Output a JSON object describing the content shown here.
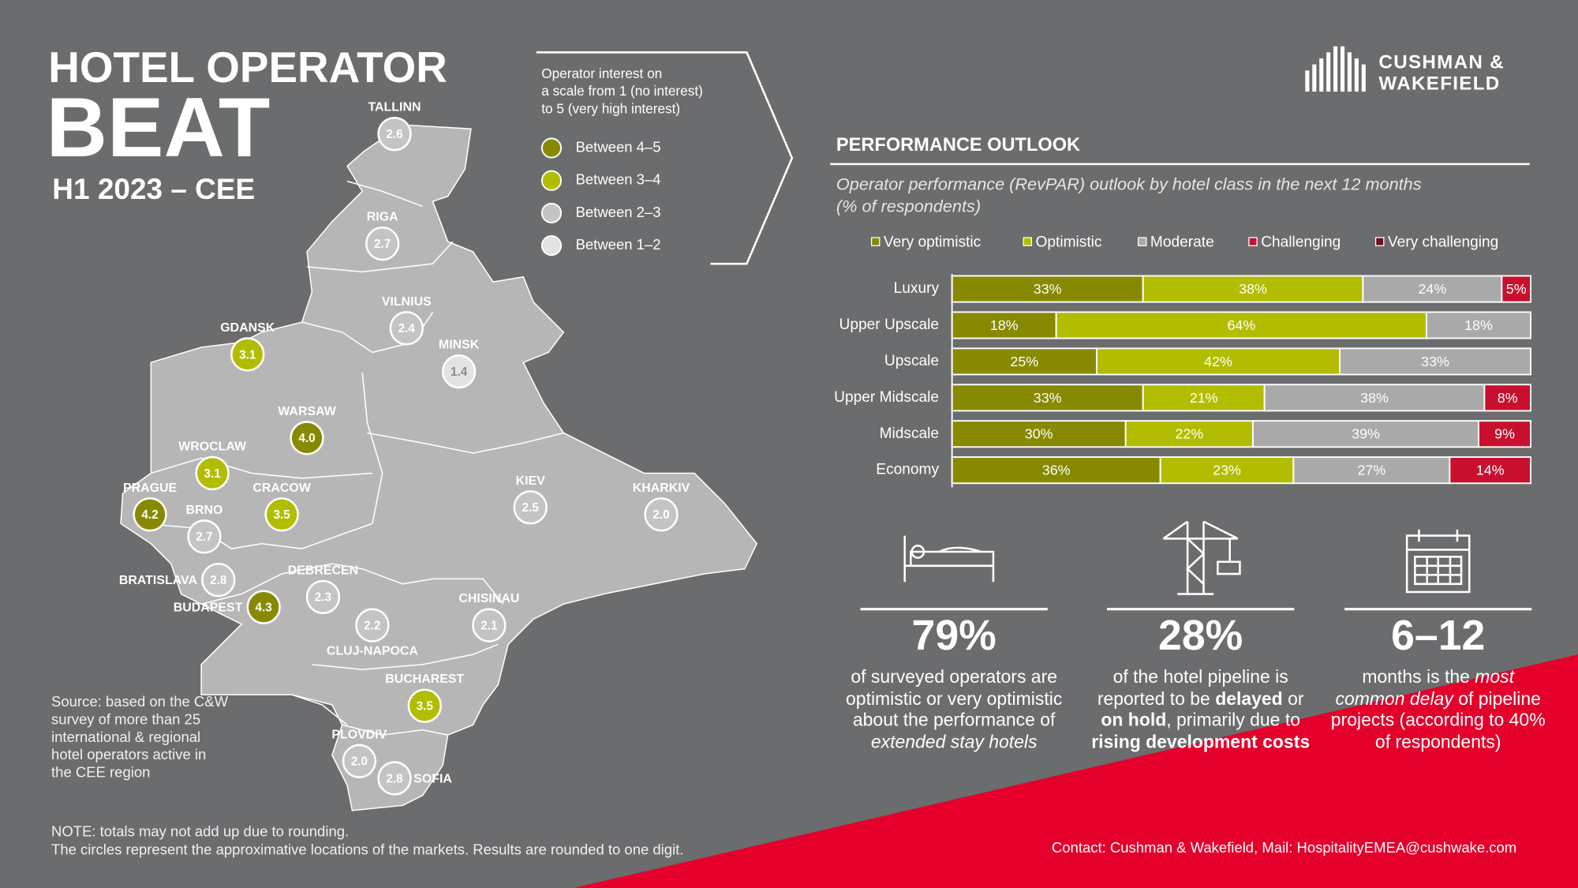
{
  "header": {
    "title": "HOTEL OPERATOR",
    "title_large": "BEAT",
    "subtitle": "H1 2023 – CEE"
  },
  "logo": {
    "line1": "CUSHMAN &",
    "line2": "WAKEFIELD"
  },
  "map_legend": {
    "lines": [
      "Operator interest on",
      "a scale from 1 (no interest)",
      "to 5 (very high interest)"
    ],
    "items": [
      {
        "label": "Between 4–5",
        "color": "#878a00"
      },
      {
        "label": "Between 3–4",
        "color": "#b2bd00"
      },
      {
        "label": "Between 2–3",
        "color": "#c4c4c4"
      },
      {
        "label": "Between 1–2",
        "color": "#e3e3e3"
      }
    ]
  },
  "map": {
    "markets": [
      {
        "name": "TALLINN",
        "value": "2.6",
        "color": "#c4c4c4"
      },
      {
        "name": "RIGA",
        "value": "2.7",
        "color": "#c4c4c4"
      },
      {
        "name": "VILNIUS",
        "value": "2.4",
        "color": "#c4c4c4"
      },
      {
        "name": "MINSK",
        "value": "1.4",
        "color": "#e3e3e3"
      },
      {
        "name": "GDANSK",
        "value": "3.1",
        "color": "#b2bd00"
      },
      {
        "name": "WARSAW",
        "value": "4.0",
        "color": "#878a00"
      },
      {
        "name": "WROCLAW",
        "value": "3.1",
        "color": "#b2bd00"
      },
      {
        "name": "CRACOW",
        "value": "3.5",
        "color": "#b2bd00"
      },
      {
        "name": "PRAGUE",
        "value": "4.2",
        "color": "#878a00"
      },
      {
        "name": "BRNO",
        "value": "2.7",
        "color": "#c4c4c4"
      },
      {
        "name": "KIEV",
        "value": "2.5",
        "color": "#c4c4c4"
      },
      {
        "name": "KHARKIV",
        "value": "2.0",
        "color": "#c4c4c4"
      },
      {
        "name": "BRATISLAVA",
        "value": "2.8",
        "color": "#c4c4c4"
      },
      {
        "name": "DEBRECEN",
        "value": "2.3",
        "color": "#c4c4c4"
      },
      {
        "name": "BUDAPEST",
        "value": "4.3",
        "color": "#878a00"
      },
      {
        "name": "CLUJ-NAPOCA",
        "value": "2.2",
        "color": "#c4c4c4"
      },
      {
        "name": "CHISINAU",
        "value": "2.1",
        "color": "#c4c4c4"
      },
      {
        "name": "BUCHAREST",
        "value": "3.5",
        "color": "#b2bd00"
      },
      {
        "name": "PLOVDIV",
        "value": "2.0",
        "color": "#c4c4c4"
      },
      {
        "name": "SOFIA",
        "value": "2.8",
        "color": "#c4c4c4"
      }
    ]
  },
  "chart_data": {
    "type": "stacked-bar-horizontal",
    "title": "PERFORMANCE OUTLOOK",
    "subtitle": [
      "Operator performance (RevPAR) outlook by hotel class in the next 12 months",
      "(% of respondents)"
    ],
    "categories": [
      "Luxury",
      "Upper Upscale",
      "Upscale",
      "Upper Midscale",
      "Midscale",
      "Economy"
    ],
    "xlim": [
      0,
      100
    ],
    "series": [
      {
        "name": "Very optimistic",
        "color": "#878a00",
        "values": [
          33,
          18,
          25,
          33,
          30,
          36
        ],
        "value_labels": [
          "33%",
          "18%",
          "25%",
          "33%",
          "30%",
          "36%"
        ]
      },
      {
        "name": "Optimistic",
        "color": "#b2bd00",
        "values": [
          38,
          64,
          42,
          21,
          22,
          23
        ],
        "value_labels": [
          "38%",
          "64%",
          "42%",
          "21%",
          "22%",
          "23%"
        ]
      },
      {
        "name": "Moderate",
        "color": "#a9a9a9",
        "values": [
          24,
          18,
          33,
          38,
          39,
          27
        ],
        "value_labels": [
          "24%",
          "18%",
          "33%",
          "38%",
          "39%",
          "27%"
        ]
      },
      {
        "name": "Challenging",
        "color": "#c8102e",
        "values": [
          5,
          null,
          null,
          8,
          9,
          14
        ],
        "value_labels": [
          "5%",
          null,
          null,
          "8%",
          "9%",
          "14%"
        ]
      },
      {
        "name": "Very challenging",
        "color": "#6e0f1e",
        "values": [
          null,
          null,
          null,
          null,
          null,
          null
        ]
      }
    ]
  },
  "stats": [
    {
      "figure": "79%",
      "text": [
        {
          "text": "of surveyed operators are optimistic or very optimistic about the performance of ",
          "style": "normal"
        },
        {
          "text": "extended stay hotels",
          "style": "italic"
        }
      ]
    },
    {
      "figure": "28%",
      "text": [
        {
          "text": "of the hotel pipeline is reported to be ",
          "style": "normal"
        },
        {
          "text": "delayed",
          "style": "bold"
        },
        {
          "text": " or ",
          "style": "normal"
        },
        {
          "text": "on hold",
          "style": "bold"
        },
        {
          "text": ", primarily due to ",
          "style": "normal"
        },
        {
          "text": "rising development costs",
          "style": "bold"
        }
      ]
    },
    {
      "figure": "6–12",
      "text": [
        {
          "text": "months is the ",
          "style": "normal"
        },
        {
          "text": "most common delay",
          "style": "italic"
        },
        {
          "text": " of pipeline projects (according to 40% of respondents)",
          "style": "normal"
        }
      ]
    }
  ],
  "source": [
    "Source: based on the C&W",
    "survey of more than 25",
    "international & regional",
    "hotel operators active in",
    "the CEE region"
  ],
  "notes": [
    "NOTE: totals may not add up due to rounding.",
    "The circles represent the approximative locations of the markets. Results are rounded to one digit."
  ],
  "contact": "Contact: Cushman & Wakefield, Mail: HospitalityEMEA@cushwake.com"
}
